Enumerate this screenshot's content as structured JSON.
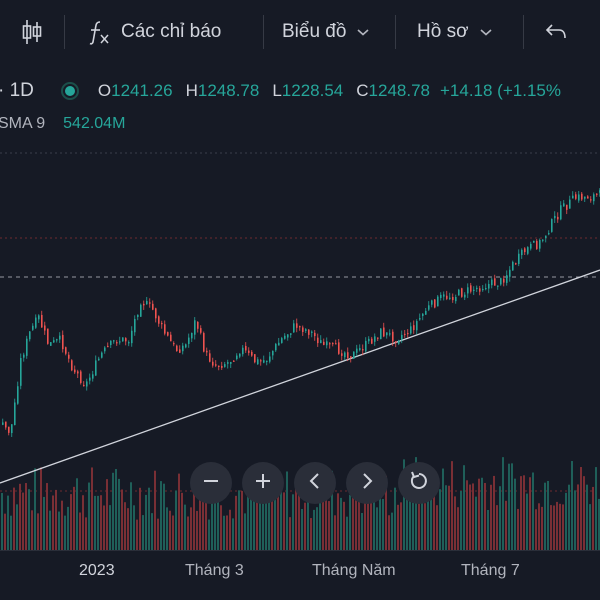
{
  "toolbar": {
    "indicators_label": "Các chỉ báo",
    "chart_menu_label": "Biểu đồ",
    "profile_menu_label": "Hồ sơ"
  },
  "legend": {
    "interval": "· 1D",
    "open_key": "O",
    "open_value": "1241.26",
    "high_key": "H",
    "high_value": "1248.78",
    "low_key": "L",
    "low_value": "1228.54",
    "close_key": "C",
    "close_value": "1248.78",
    "change": "+14.18 (+1.15%",
    "volume_sma_label": "SMA 9",
    "volume_sma_value": "542.04M"
  },
  "x_axis": {
    "labels": [
      "2023",
      "Tháng 3",
      "Tháng Năm",
      "Tháng 7"
    ]
  },
  "colors": {
    "background": "#161a25",
    "up": "#26a69a",
    "down": "#ef5350",
    "text": "#d1d4dc"
  },
  "icons": [
    "candles-icon",
    "formula-icon",
    "chevron-down-icon",
    "undo-icon",
    "zoom-out-icon",
    "zoom-in-icon",
    "scroll-left-icon",
    "scroll-right-icon",
    "reset-icon"
  ]
}
